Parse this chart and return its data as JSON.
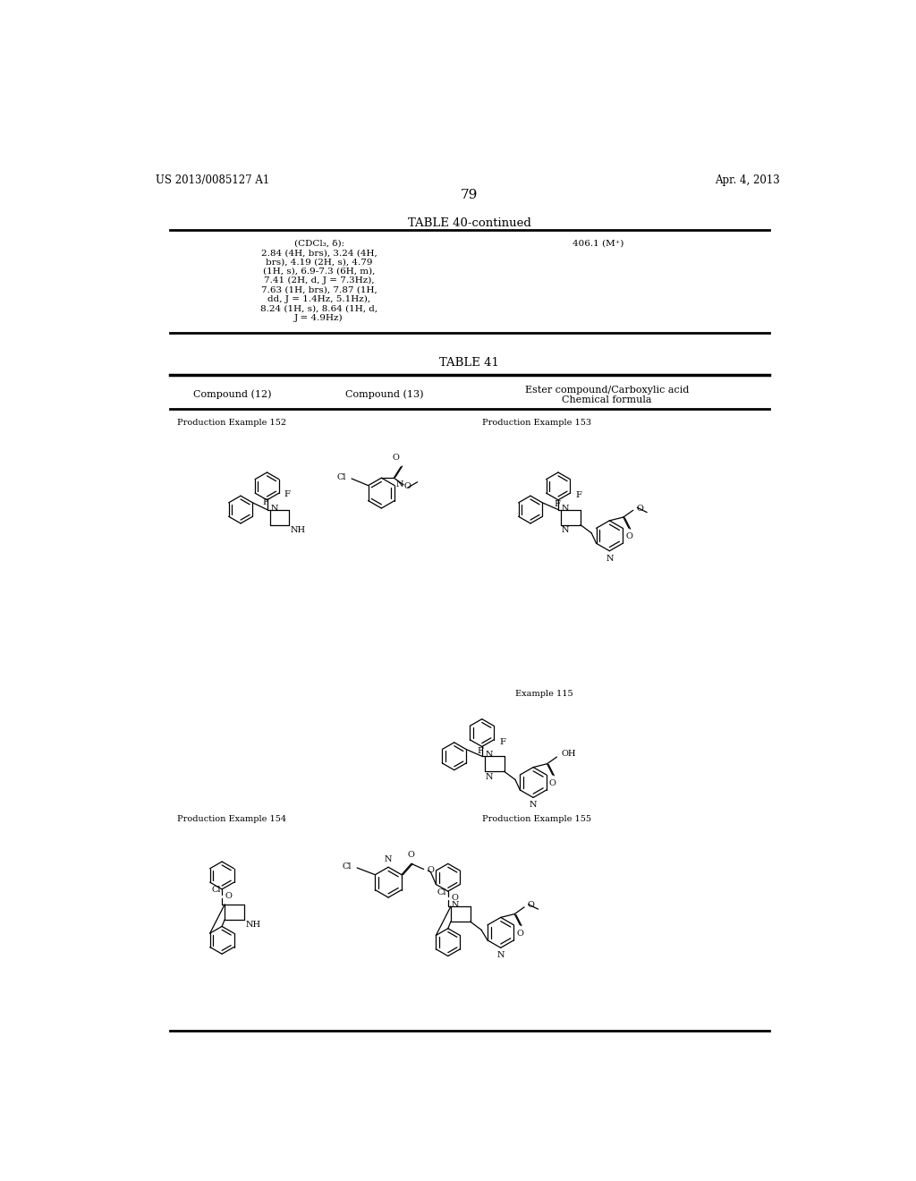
{
  "page_number": "79",
  "left_header": "US 2013/0085127 A1",
  "right_header": "Apr. 4, 2013",
  "table40_continued_title": "TABLE 40-continued",
  "table40_col1_text": "(CDCl₃, δ):\n2.84 (4H, brs), 3.24 (4H,\nbrs), 4.19 (2H, s), 4.79\n(1H, s), 6.9-7.3 (6H, m),\n7.41 (2H, d, J = 7.3Hz),\n7.63 (1H, brs), 7.87 (1H,\ndd, J = 1.4Hz, 5.1Hz),\n8.24 (1H, s), 8.64 (1H, d,\nJ = 4.9Hz)",
  "table40_col2_text": "406.1 (M⁺)",
  "table41_title": "TABLE 41",
  "col1_header": "Compound (12)",
  "col2_header": "Compound (13)",
  "col3_header_line1": "Ester compound/Carboxylic acid",
  "col3_header_line2": "Chemical formula",
  "prod_ex_152": "Production Example 152",
  "prod_ex_153": "Production Example 153",
  "example_115": "Example 115",
  "prod_ex_154": "Production Example 154",
  "prod_ex_155": "Production Example 155",
  "background_color": "#ffffff",
  "text_color": "#000000",
  "font_size_header": 8.5,
  "font_size_title": 9.5,
  "font_size_label": 8.0,
  "font_size_cell": 7.5
}
